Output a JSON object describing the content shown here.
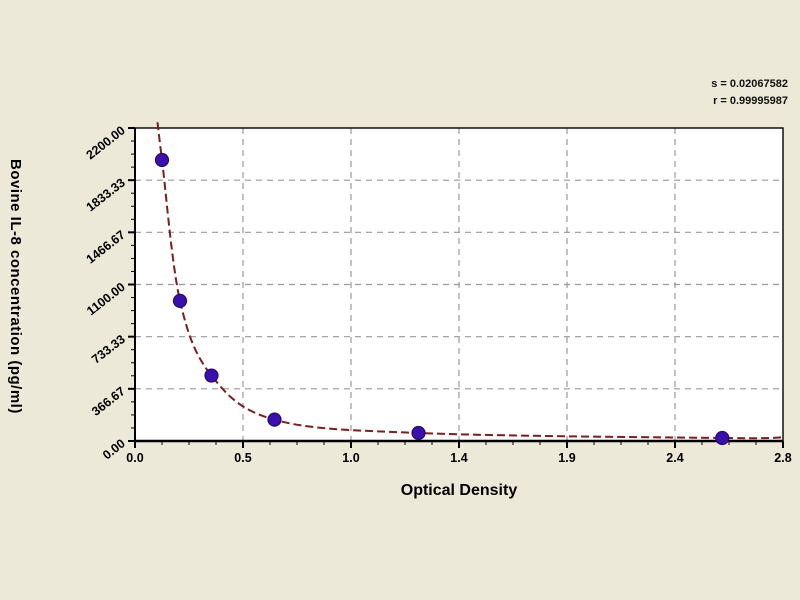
{
  "background_color": "#ece9d8",
  "plot_bg_color": "#ffffff",
  "stats": {
    "line1": "s = 0.02067582",
    "line2": "r = 0.99995987"
  },
  "chart_data": {
    "type": "scatter",
    "title": "",
    "xlabel": "Optical Density",
    "ylabel": "Bovine IL-8 concentration (pg/ml)",
    "x_ticks": [
      "0.0",
      "0.5",
      "1.0",
      "1.4",
      "1.9",
      "2.4",
      "2.8"
    ],
    "y_ticks": [
      "0.00",
      "366.67",
      "733.33",
      "1100.00",
      "1466.67",
      "1833.33",
      "2200.00"
    ],
    "xlim": [
      0,
      2.88
    ],
    "ylim": [
      0,
      2200
    ],
    "grid": "dashed",
    "minor_ticks_per_interval": 3,
    "legend": "none",
    "series": [
      {
        "name": "standards",
        "points": [
          {
            "od": 0.12,
            "conc": 1975
          },
          {
            "od": 0.2,
            "conc": 985
          },
          {
            "od": 0.34,
            "conc": 460
          },
          {
            "od": 0.62,
            "conc": 150
          },
          {
            "od": 1.26,
            "conc": 56
          },
          {
            "od": 2.61,
            "conc": 21
          }
        ]
      }
    ],
    "fit_curve": {
      "style": "dashed",
      "start": {
        "od": 0.1,
        "conc": 2240
      },
      "end": {
        "od": 2.88,
        "conc": 26
      }
    },
    "colors": {
      "curve": "#7a1e1e",
      "points": "#3a10ad",
      "point_edge": "#240a6e",
      "grid": "#999999",
      "axis": "#000000",
      "text": "#000000"
    }
  }
}
